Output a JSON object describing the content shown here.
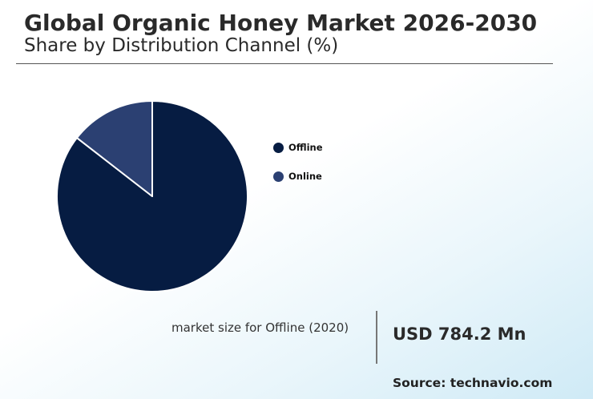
{
  "header": {
    "title": "Global Organic Honey Market 2026-2030",
    "subtitle": "Share by Distribution Channel (%)"
  },
  "chart_data": {
    "type": "pie",
    "title": "Global Organic Honey Market 2026-2030",
    "subtitle": "Share by Distribution Channel (%)",
    "categories": [
      "Offline",
      "Online"
    ],
    "values": [
      85.5,
      14.5
    ],
    "colors": [
      "#061c42",
      "#2b4072"
    ],
    "start_angle_deg": 0,
    "direction": "clockwise",
    "legend_position": "right",
    "slice_border_color": "#ffffff"
  },
  "legend": {
    "items": [
      {
        "label": "Offline",
        "color": "#061c42"
      },
      {
        "label": "Online",
        "color": "#2b4072"
      }
    ]
  },
  "stat": {
    "label": "market size for Offline (2020)",
    "value": "USD 784.2 Mn"
  },
  "source": "Source: technavio.com"
}
